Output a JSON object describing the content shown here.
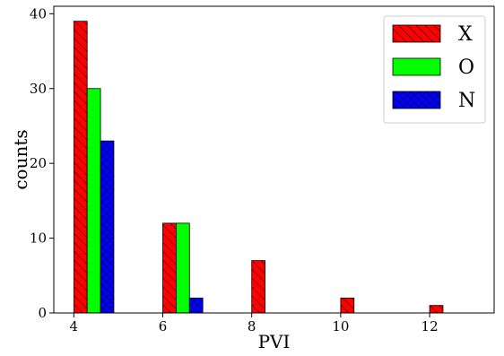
{
  "chart_data": {
    "type": "bar",
    "xlabel": "PVI",
    "ylabel": "counts",
    "xlim": [
      3.55,
      13.45
    ],
    "ylim": [
      0,
      41
    ],
    "x_ticks": [
      "4",
      "6",
      "8",
      "10",
      "12"
    ],
    "x_tick_values": [
      4,
      6,
      8,
      10,
      12
    ],
    "y_ticks": [
      "0",
      "10",
      "20",
      "30",
      "40"
    ],
    "y_tick_values": [
      0,
      10,
      20,
      30,
      40
    ],
    "bin_starts": [
      4.0,
      6.0,
      8.0,
      10.0,
      12.0
    ],
    "bin_width": 0.9,
    "grid": false,
    "legend_position": "top-right",
    "series": [
      {
        "name": "X",
        "color": "#ff0000",
        "hatch": "diagonal",
        "values": [
          39,
          12,
          7,
          2,
          1
        ]
      },
      {
        "name": "O",
        "color": "#00ff00",
        "hatch": "none",
        "values": [
          30,
          12,
          0,
          0,
          0
        ]
      },
      {
        "name": "N",
        "color": "#0000ff",
        "hatch": "crosshatch",
        "values": [
          23,
          2,
          0,
          0,
          0
        ]
      }
    ]
  }
}
